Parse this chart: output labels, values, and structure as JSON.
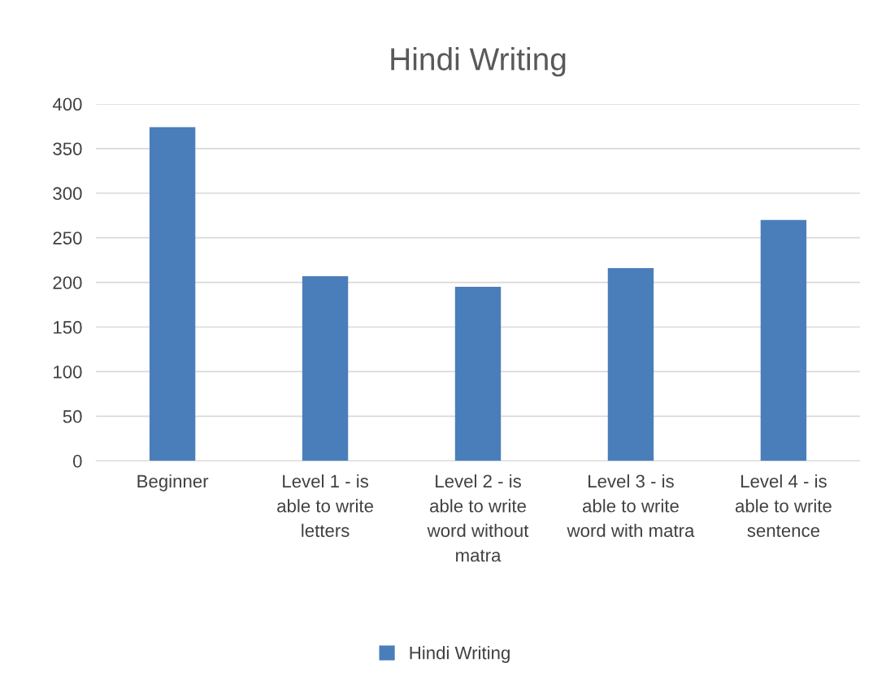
{
  "chart_data": {
    "type": "bar",
    "title": "Hindi Writing",
    "categories": [
      "Beginner",
      "Level 1 - is able to write letters",
      "Level 2 - is able to write word without matra",
      "Level 3 - is able to write word with matra",
      "Level 4 - is able to write sentence"
    ],
    "series": [
      {
        "name": "Hindi Writing",
        "color": "#4a7ebb",
        "values": [
          374,
          207,
          195,
          216,
          270
        ]
      }
    ],
    "ylim": [
      0,
      400
    ],
    "yticks": [
      0,
      50,
      100,
      150,
      200,
      250,
      300,
      350,
      400
    ],
    "grid": "y",
    "legend": "bottom"
  }
}
